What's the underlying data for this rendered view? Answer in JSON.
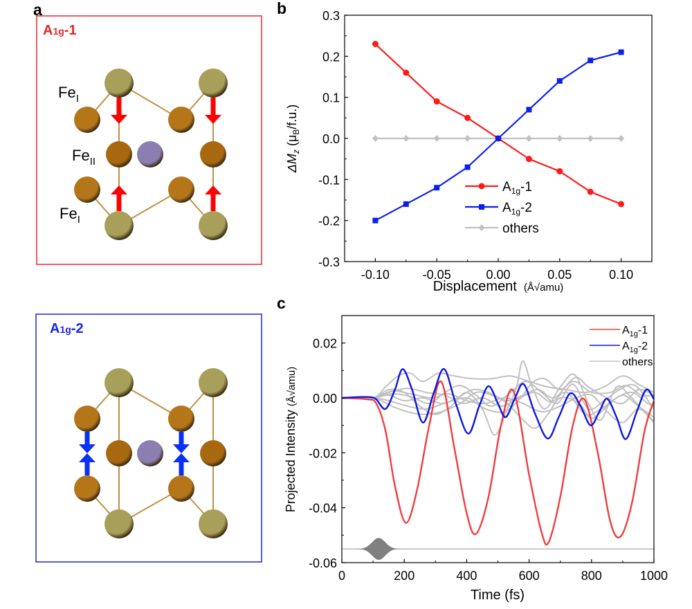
{
  "panel_labels": {
    "a": "a",
    "b": "b",
    "c": "c"
  },
  "structure_panels": [
    {
      "title_main": "A",
      "title_sub": "1g",
      "title_suffix": "-1",
      "frame_color": "#e8252a",
      "arrow_color": "#ff0000",
      "site_labels": [
        {
          "main": "Fe",
          "sub": "I"
        },
        {
          "main": "Fe",
          "sub": "II"
        },
        {
          "main": "Fe",
          "sub": "I"
        }
      ]
    },
    {
      "title_main": "A",
      "title_sub": "1g",
      "title_suffix": "-2",
      "frame_color": "#1a24e6",
      "arrow_color": "#0a2ff5"
    }
  ],
  "atom_colors": {
    "fe_i_corner": "#a8a05a",
    "fe_side": "#b5761a",
    "fe_ii": "#a8680f",
    "center": "#8a7fb0",
    "bond": "#c09040"
  },
  "chart_data": [
    {
      "id": "b",
      "type": "line",
      "title": "",
      "xlabel": "Displacement",
      "xlabel_unit": "(Å√amu)",
      "ylabel_prefix": "ΔM",
      "ylabel_sub": "z",
      "ylabel_unit_open": " (μ",
      "ylabel_unit_sub": "B",
      "ylabel_unit_close": "/f.u.)",
      "xlim": [
        -0.125,
        0.125
      ],
      "ylim": [
        -0.3,
        0.3
      ],
      "xticks": [
        -0.1,
        -0.05,
        0.0,
        0.05,
        0.1
      ],
      "xtick_labels": [
        "-0.10",
        "-0.05",
        "0.00",
        "0.05",
        "0.10"
      ],
      "xminor": [
        -0.075,
        -0.025,
        0.025,
        0.075
      ],
      "yticks": [
        -0.3,
        -0.2,
        -0.1,
        0.0,
        0.1,
        0.2,
        0.3
      ],
      "ytick_labels": [
        "-0.3",
        "-0.2",
        "-0.1",
        "0.0",
        "0.1",
        "0.2",
        "0.3"
      ],
      "yminor": [
        -0.25,
        -0.15,
        -0.05,
        0.05,
        0.15,
        0.25
      ],
      "grid": false,
      "legend_position": "lower-center",
      "x": [
        -0.1,
        -0.075,
        -0.05,
        -0.025,
        0.0,
        0.025,
        0.05,
        0.075,
        0.1
      ],
      "series": [
        {
          "name_main": "A",
          "name_sub": "1g",
          "name_suffix": "-1",
          "color": "#ff1a1a",
          "marker": "circle",
          "values": [
            0.23,
            0.16,
            0.09,
            0.05,
            0.0,
            -0.05,
            -0.08,
            -0.13,
            -0.16
          ]
        },
        {
          "name_main": "A",
          "name_sub": "1g",
          "name_suffix": "-2",
          "color": "#0a1ef0",
          "marker": "square",
          "values": [
            -0.2,
            -0.16,
            -0.12,
            -0.07,
            0.0,
            0.07,
            0.14,
            0.19,
            0.21
          ]
        },
        {
          "name_main": "others",
          "name_sub": "",
          "name_suffix": "",
          "color": "#c0c0c0",
          "marker": "diamond",
          "values": [
            0,
            0,
            0,
            0,
            0,
            0,
            0,
            0,
            0
          ]
        }
      ]
    },
    {
      "id": "c",
      "type": "line",
      "title": "",
      "xlabel": "Time (fs)",
      "ylabel": "Projected Intensity",
      "ylabel_unit": "(Å√amu)",
      "xlim": [
        0,
        1000
      ],
      "ylim": [
        -0.06,
        0.03
      ],
      "xticks": [
        0,
        200,
        400,
        600,
        800,
        1000
      ],
      "xtick_labels": [
        "0",
        "200",
        "400",
        "600",
        "800",
        "1000"
      ],
      "xminor": [
        100,
        300,
        500,
        700,
        900
      ],
      "yticks": [
        -0.06,
        -0.04,
        -0.02,
        0.0,
        0.02
      ],
      "ytick_labels": [
        "-0.06",
        "-0.04",
        "-0.02",
        "0.00",
        "0.02"
      ],
      "yminor": [
        -0.05,
        -0.03,
        -0.01,
        0.01
      ],
      "grid": false,
      "legend_position": "top-right",
      "series": [
        {
          "name_main": "A",
          "name_sub": "1g",
          "name_suffix": "-1",
          "color": "#f03c3c",
          "points": [
            [
              0,
              0
            ],
            [
              80,
              -0.0005
            ],
            [
              110,
              -0.002
            ],
            [
              140,
              -0.012
            ],
            [
              170,
              -0.032
            ],
            [
              205,
              -0.0455
            ],
            [
              240,
              -0.034
            ],
            [
              280,
              -0.01
            ],
            [
              318,
              0.006
            ],
            [
              360,
              -0.018
            ],
            [
              400,
              -0.042
            ],
            [
              430,
              -0.0495
            ],
            [
              470,
              -0.036
            ],
            [
              510,
              -0.01
            ],
            [
              550,
              0.0025
            ],
            [
              600,
              -0.028
            ],
            [
              640,
              -0.049
            ],
            [
              663,
              -0.0525
            ],
            [
              700,
              -0.036
            ],
            [
              740,
              -0.01
            ],
            [
              777,
              -0.0005
            ],
            [
              820,
              -0.02
            ],
            [
              860,
              -0.045
            ],
            [
              893,
              -0.0505
            ],
            [
              930,
              -0.038
            ],
            [
              970,
              -0.012
            ],
            [
              1000,
              -0.001
            ]
          ]
        },
        {
          "name_main": "A",
          "name_sub": "1g",
          "name_suffix": "-2",
          "color": "#0a14e6",
          "points": [
            [
              0,
              0
            ],
            [
              50,
              0.0003
            ],
            [
              90,
              0.0003
            ],
            [
              110,
              -0.0005
            ],
            [
              140,
              -0.004
            ],
            [
              170,
              0.003
            ],
            [
              195,
              0.0105
            ],
            [
              225,
              0.003
            ],
            [
              260,
              -0.009
            ],
            [
              295,
              0.002
            ],
            [
              328,
              0.0105
            ],
            [
              365,
              -0.002
            ],
            [
              405,
              -0.013
            ],
            [
              440,
              -0.003
            ],
            [
              470,
              0.0043
            ],
            [
              500,
              -0.002
            ],
            [
              525,
              -0.007
            ],
            [
              555,
              0.0
            ],
            [
              583,
              0.005
            ],
            [
              620,
              -0.006
            ],
            [
              660,
              -0.0148
            ],
            [
              695,
              -0.007
            ],
            [
              732,
              0.0017
            ],
            [
              765,
              -0.003
            ],
            [
              797,
              -0.01
            ],
            [
              825,
              -0.005
            ],
            [
              850,
              -0.0003
            ],
            [
              880,
              -0.007
            ],
            [
              910,
              -0.015
            ],
            [
              945,
              -0.005
            ],
            [
              975,
              0.003
            ],
            [
              1000,
              -0.0005
            ]
          ]
        }
      ],
      "others_label": "others",
      "others_color": "#c0c0c0",
      "others_series": [
        [
          [
            0,
            0
          ],
          [
            100,
            0
          ],
          [
            140,
            0.004
          ],
          [
            180,
            0.008
          ],
          [
            220,
            0.009
          ],
          [
            260,
            0.006
          ],
          [
            310,
            0.009
          ],
          [
            360,
            0.008
          ],
          [
            420,
            0.007
          ],
          [
            480,
            0.007
          ],
          [
            540,
            0.008
          ],
          [
            600,
            0.006
          ],
          [
            660,
            0.004
          ],
          [
            720,
            0.003
          ],
          [
            780,
            0.002
          ],
          [
            840,
            0.004
          ],
          [
            900,
            0.008
          ],
          [
            950,
            0.005
          ],
          [
            1000,
            0.002
          ]
        ],
        [
          [
            0,
            0
          ],
          [
            100,
            0
          ],
          [
            150,
            0.003
          ],
          [
            200,
            0.002
          ],
          [
            250,
            -0.003
          ],
          [
            300,
            -0.006
          ],
          [
            350,
            -0.003
          ],
          [
            400,
            0.002
          ],
          [
            450,
            -0.004
          ],
          [
            490,
            -0.0135
          ],
          [
            530,
            -0.004
          ],
          [
            560,
            0.004
          ],
          [
            580,
            0.0135
          ],
          [
            610,
            0.004
          ],
          [
            650,
            -0.004
          ],
          [
            700,
            0.004
          ],
          [
            745,
            0.0085
          ],
          [
            790,
            -0.002
          ],
          [
            830,
            -0.008
          ],
          [
            880,
            0.004
          ],
          [
            920,
            0.001
          ],
          [
            960,
            -0.004
          ],
          [
            1000,
            -0.009
          ]
        ],
        [
          [
            0,
            0
          ],
          [
            100,
            0
          ],
          [
            160,
            0.0015
          ],
          [
            220,
            0.0005
          ],
          [
            280,
            -0.002
          ],
          [
            330,
            0.002
          ],
          [
            380,
            0.0045
          ],
          [
            430,
            0.001
          ],
          [
            480,
            -0.003
          ],
          [
            540,
            0.002
          ],
          [
            590,
            0.006
          ],
          [
            640,
            0.002
          ],
          [
            690,
            -0.002
          ],
          [
            740,
            0.005
          ],
          [
            790,
            -0.004
          ],
          [
            840,
            -0.001
          ],
          [
            890,
            0.003
          ],
          [
            940,
            0.0045
          ],
          [
            1000,
            -0.004
          ]
        ],
        [
          [
            0,
            0
          ],
          [
            100,
            0
          ],
          [
            160,
            -0.003
          ],
          [
            210,
            -0.005
          ],
          [
            260,
            -0.006
          ],
          [
            320,
            -0.005
          ],
          [
            380,
            -0.002
          ],
          [
            430,
            0.002
          ],
          [
            480,
            0.001
          ],
          [
            530,
            -0.002
          ],
          [
            580,
            -0.008
          ],
          [
            620,
            -0.011
          ],
          [
            660,
            -0.006
          ],
          [
            700,
            0.0
          ],
          [
            760,
            -0.002
          ],
          [
            800,
            -0.0075
          ],
          [
            850,
            -0.003
          ],
          [
            900,
            0.001
          ],
          [
            950,
            -0.003
          ],
          [
            1000,
            -0.007
          ]
        ],
        [
          [
            0,
            0
          ],
          [
            100,
            0
          ],
          [
            150,
            0.001
          ],
          [
            200,
            -0.001
          ],
          [
            260,
            0.0
          ],
          [
            320,
            -0.002
          ],
          [
            370,
            0.0
          ],
          [
            420,
            0.003
          ],
          [
            470,
            0.002
          ],
          [
            530,
            -0.001
          ],
          [
            580,
            0.001
          ],
          [
            630,
            0.003
          ],
          [
            680,
            0.0
          ],
          [
            740,
            0.006
          ],
          [
            800,
            0.002
          ],
          [
            860,
            0.002
          ],
          [
            910,
            0.0045
          ],
          [
            960,
            0.001
          ],
          [
            1000,
            0.001
          ]
        ],
        [
          [
            0,
            0
          ],
          [
            100,
            0
          ],
          [
            150,
            0.002
          ],
          [
            210,
            0.0035
          ],
          [
            270,
            0.002
          ],
          [
            330,
            0.001
          ],
          [
            390,
            -0.002
          ],
          [
            450,
            0.0
          ],
          [
            510,
            -0.003
          ],
          [
            570,
            0.0
          ],
          [
            620,
            0.002
          ],
          [
            670,
            -0.0015
          ],
          [
            720,
            0.002
          ],
          [
            780,
            -0.006
          ],
          [
            830,
            -0.004
          ],
          [
            880,
            0.0
          ],
          [
            930,
            0.002
          ],
          [
            980,
            -0.002
          ],
          [
            1000,
            -0.003
          ]
        ],
        [
          [
            0,
            0
          ],
          [
            100,
            0
          ],
          [
            150,
            -0.001
          ],
          [
            210,
            -0.003
          ],
          [
            270,
            -0.004
          ],
          [
            330,
            -0.002
          ],
          [
            400,
            0.0
          ],
          [
            460,
            -0.004
          ],
          [
            520,
            -0.005
          ],
          [
            570,
            -0.0005
          ],
          [
            610,
            0.0055
          ],
          [
            650,
            0.007
          ],
          [
            700,
            0.003
          ],
          [
            750,
            0.0075
          ],
          [
            790,
            0.004
          ],
          [
            850,
            0.0
          ],
          [
            900,
            -0.002
          ],
          [
            950,
            0.003
          ],
          [
            1000,
            0.001
          ]
        ],
        [
          [
            0,
            0
          ],
          [
            100,
            0
          ],
          [
            160,
            0.0025
          ],
          [
            220,
            0.0015
          ],
          [
            290,
            0.0
          ],
          [
            340,
            0.0015
          ],
          [
            400,
            -0.001
          ],
          [
            460,
            -0.002
          ],
          [
            520,
            0.0
          ],
          [
            580,
            -0.002
          ],
          [
            640,
            -0.005
          ],
          [
            700,
            -0.003
          ],
          [
            750,
            0.0
          ],
          [
            800,
            0.001
          ],
          [
            850,
            -0.005
          ],
          [
            900,
            -0.009
          ],
          [
            950,
            -0.004
          ],
          [
            1000,
            -0.0085
          ]
        ]
      ],
      "pulse": {
        "t_center": 118,
        "t_width": 30,
        "baseline": -0.055,
        "amplitude": 0.004,
        "color": "#808080",
        "line_color": "#a0a0a0"
      }
    }
  ]
}
